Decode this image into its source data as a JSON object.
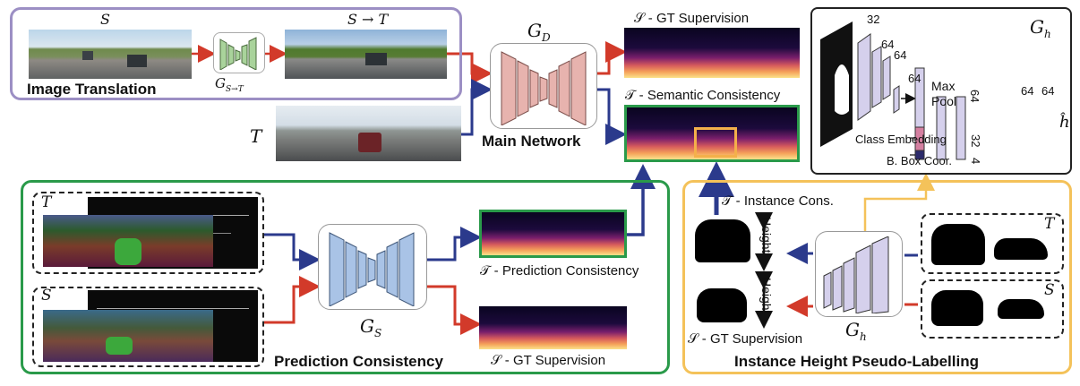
{
  "image_translation": {
    "label": "Image Translation",
    "src_symbol": "S",
    "translated_symbol": "S → T",
    "generator_symbol": "G",
    "generator_sub": "S→T"
  },
  "main_network": {
    "label": "Main Network",
    "generator_symbol": "G",
    "generator_sub": "D",
    "target_symbol": "T",
    "supervision_label": "𝒮 - GT Supervision",
    "semantic_label": "𝒯 - Semantic Consistency"
  },
  "height_network": {
    "generator_symbol": "G",
    "generator_sub": "h",
    "channels": [
      "32",
      "64",
      "64",
      "64"
    ],
    "pool_label_1": "Max",
    "pool_label_2": "Pool",
    "vec_main": "64",
    "vec_class": "32",
    "vec_box": "4",
    "class_embedding_label": "Class Embedding",
    "box_coord_label": "B. Box Coor.",
    "fc_channels": [
      "64",
      "64"
    ],
    "output_symbol": "ĥ"
  },
  "prediction_consistency": {
    "label": "Prediction Consistency",
    "generator_symbol": "G",
    "generator_sub": "S",
    "target_symbol": "T",
    "source_symbol": "S",
    "target_pred_label": "𝒯 - Prediction Consistency",
    "source_sup_label": "𝒮 - GT Supervision"
  },
  "instance_height": {
    "label": "Instance Height Pseudo-Labelling",
    "instance_cons_label": "𝒯 - Instance Cons.",
    "height_label_top": "Height",
    "height_label_bottom": "Height",
    "gt_supervision_label": "𝒮 - GT Supervision",
    "generator_symbol": "G",
    "generator_sub": "h",
    "target_symbol": "T",
    "source_symbol": "S"
  },
  "colors": {
    "purple_border": "#9c8fc4",
    "green_border": "#2a9a4a",
    "yellow_border": "#f4c25a",
    "arrow_red": "#d23a2a",
    "arrow_blue": "#2b3a8c",
    "gen_st": "#a9d39b",
    "gen_d": "#e7b3ae",
    "gen_s": "#a9c3e6",
    "gen_h": "#d5d0ec"
  }
}
